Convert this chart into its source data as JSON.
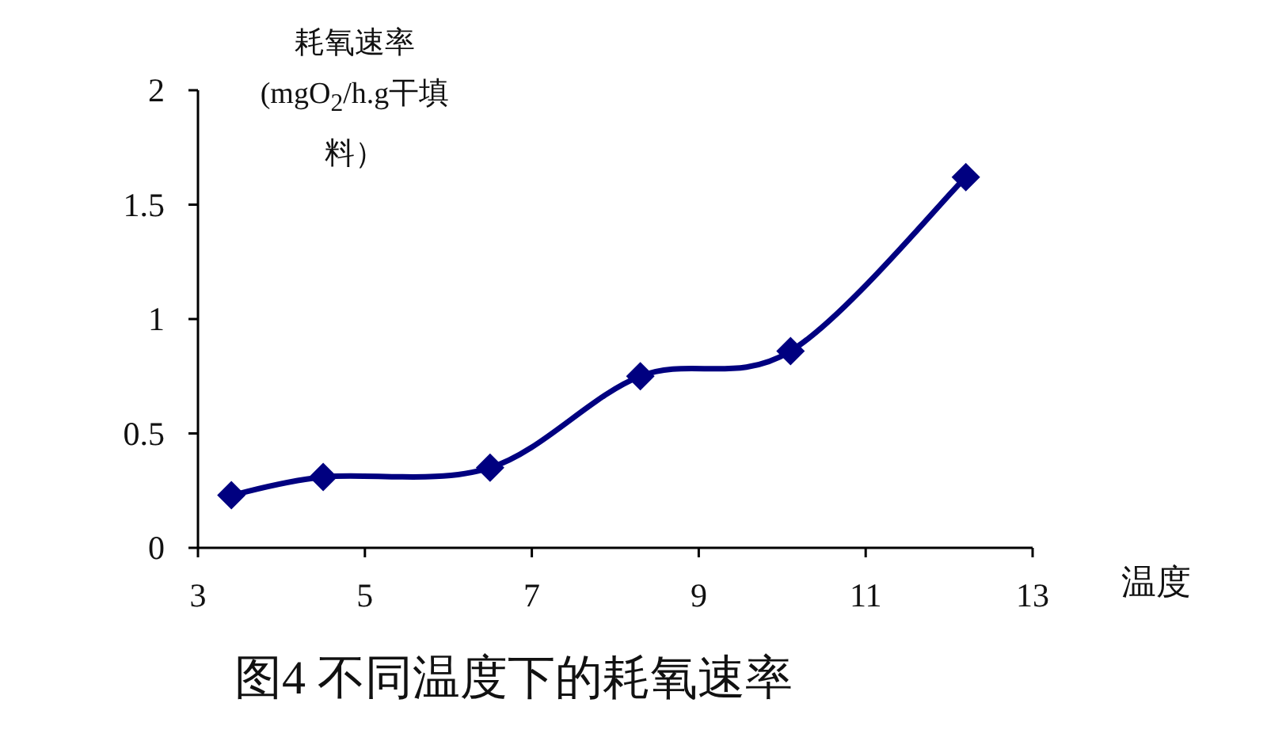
{
  "chart_data": {
    "type": "line",
    "title": "图4 不同温度下的耗氧速率",
    "xlabel": "温度",
    "ylabel": "耗氧速率 (mgO$_{2}$/h.g干填料）",
    "x": [
      3.4,
      4.5,
      6.5,
      8.3,
      10.1,
      12.2
    ],
    "series": [
      {
        "color": "#000080",
        "values": [
          0.23,
          0.31,
          0.35,
          0.75,
          0.86,
          1.62
        ]
      }
    ],
    "xlim": [
      3,
      13
    ],
    "xticks": [
      3,
      5,
      7,
      9,
      11,
      13
    ],
    "ylim": [
      0,
      2
    ],
    "yticks": [
      0,
      0.5,
      1,
      1.5,
      2
    ],
    "marker": "diamond",
    "line_style": "solid",
    "grid": false
  }
}
